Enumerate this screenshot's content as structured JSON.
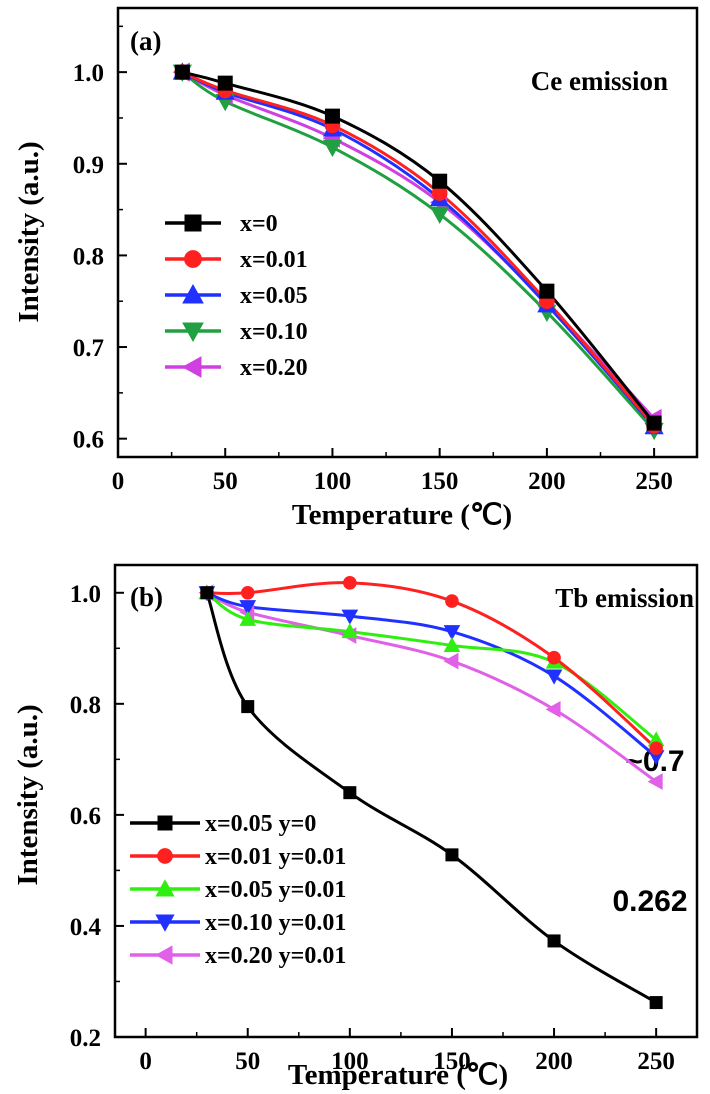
{
  "chart_data": [
    {
      "type": "line",
      "panel_label": "(a)",
      "annotation": "Ce emission",
      "xlabel": "Temperature (℃)",
      "ylabel": "Intensity (a.u.)",
      "xlim": [
        0,
        270
      ],
      "ylim": [
        0.58,
        1.07
      ],
      "x_ticks": [
        0,
        50,
        100,
        150,
        200,
        250
      ],
      "y_ticks": [
        0.6,
        0.7,
        0.8,
        0.9,
        1.0
      ],
      "y_tick_labels": [
        "0.6",
        "0.7",
        "0.8",
        "0.9",
        "1.0"
      ],
      "x": [
        30,
        50,
        100,
        150,
        200,
        250
      ],
      "series": [
        {
          "name": "x=0",
          "color": "#000000",
          "marker": "square",
          "values": [
            1.0,
            0.988,
            0.952,
            0.881,
            0.761,
            0.617
          ]
        },
        {
          "name": "x=0.01",
          "color": "#ff2020",
          "marker": "circle",
          "values": [
            1.0,
            0.98,
            0.942,
            0.868,
            0.75,
            0.614
          ]
        },
        {
          "name": "x=0.05",
          "color": "#2030ff",
          "marker": "triangle-up",
          "values": [
            1.0,
            0.978,
            0.938,
            0.862,
            0.746,
            0.613
          ]
        },
        {
          "name": "x=0.10",
          "color": "#20a040",
          "marker": "triangle-down",
          "values": [
            1.0,
            0.968,
            0.918,
            0.845,
            0.738,
            0.609
          ]
        },
        {
          "name": "x=0.20",
          "color": "#d040e0",
          "marker": "triangle-left",
          "values": [
            1.0,
            0.975,
            0.928,
            0.858,
            0.748,
            0.622
          ]
        }
      ]
    },
    {
      "type": "line",
      "panel_label": "(b)",
      "annotation": "Tb emission",
      "annotation_high": "~0.7",
      "annotation_low": "0.262",
      "xlabel": "Temperature (℃)",
      "ylabel": "Intensity (a.u.)",
      "xlim": [
        -15,
        270
      ],
      "ylim": [
        0.2,
        1.05
      ],
      "x_ticks": [
        0,
        50,
        100,
        150,
        200,
        250
      ],
      "y_ticks": [
        0.2,
        0.4,
        0.6,
        0.8,
        1.0
      ],
      "y_tick_labels": [
        "0.2",
        "0.4",
        "0.6",
        "0.8",
        "1.0"
      ],
      "x": [
        30,
        50,
        100,
        150,
        200,
        250
      ],
      "series": [
        {
          "name": "x=0.05  y=0",
          "color": "#000000",
          "marker": "square",
          "values": [
            1.0,
            0.795,
            0.64,
            0.528,
            0.373,
            0.262
          ]
        },
        {
          "name": "x=0.01  y=0.01",
          "color": "#ff2020",
          "marker": "circle",
          "values": [
            1.0,
            1.0,
            1.018,
            0.985,
            0.883,
            0.72
          ]
        },
        {
          "name": "x=0.05  y=0.01",
          "color": "#30ee10",
          "marker": "triangle-up",
          "values": [
            1.0,
            0.952,
            0.93,
            0.905,
            0.875,
            0.735
          ]
        },
        {
          "name": "x=0.10  y=0.01",
          "color": "#2030ff",
          "marker": "triangle-down",
          "values": [
            1.0,
            0.975,
            0.958,
            0.93,
            0.85,
            0.705
          ]
        },
        {
          "name": "x=0.20  y=0.01",
          "color": "#e060e8",
          "marker": "triangle-left",
          "values": [
            1.0,
            0.965,
            0.923,
            0.877,
            0.79,
            0.66
          ]
        }
      ]
    }
  ]
}
